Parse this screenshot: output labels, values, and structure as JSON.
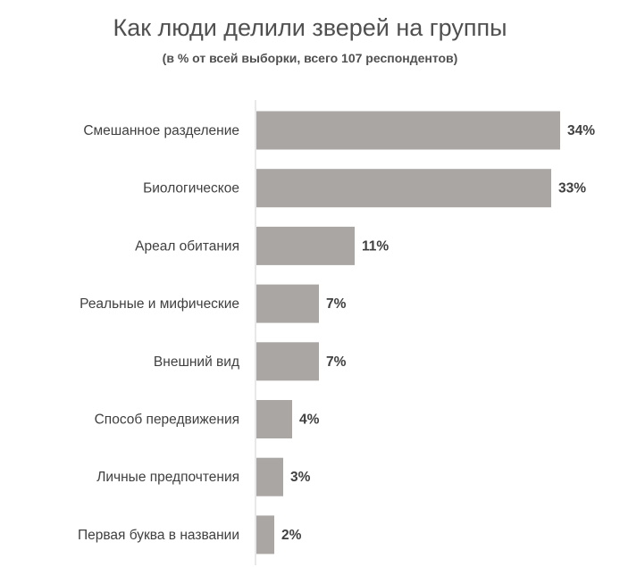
{
  "chart_data": {
    "type": "bar",
    "orientation": "horizontal",
    "title": "Как люди делили зверей на группы",
    "subtitle": "(в % от всей выборки, всего 107 респондентов)",
    "categories": [
      "Смешанное разделение",
      "Биологическое",
      "Ареал обитания",
      "Реальные и мифические",
      "Внешний вид",
      "Способ передвижения",
      "Личные предпочтения",
      "Первая буква в названии"
    ],
    "values": [
      34,
      33,
      11,
      7,
      7,
      4,
      3,
      2
    ],
    "value_labels": [
      "34%",
      "33%",
      "11%",
      "7%",
      "7%",
      "4%",
      "3%",
      "2%"
    ],
    "xlim": [
      0,
      34
    ],
    "grid": false,
    "legend": "none",
    "bar_color": "#aaa6a4"
  }
}
